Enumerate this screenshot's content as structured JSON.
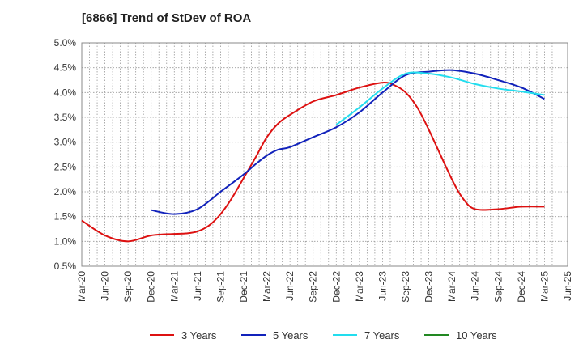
{
  "chart_data": {
    "type": "line",
    "title": "[6866]  Trend of StDev of ROA",
    "xlabel": "",
    "ylabel": "",
    "x_ticks": [
      "Mar-20",
      "Jun-20",
      "Sep-20",
      "Dec-20",
      "Mar-21",
      "Jun-21",
      "Sep-21",
      "Dec-21",
      "Mar-22",
      "Jun-22",
      "Sep-22",
      "Dec-22",
      "Mar-23",
      "Jun-23",
      "Sep-23",
      "Dec-23",
      "Mar-24",
      "Jun-24",
      "Sep-24",
      "Dec-24",
      "Mar-25",
      "Jun-25"
    ],
    "y_ticks": [
      "0.5%",
      "1.0%",
      "1.5%",
      "2.0%",
      "2.5%",
      "3.0%",
      "3.5%",
      "4.0%",
      "4.5%",
      "5.0%"
    ],
    "ylim": [
      0.5,
      5.0
    ],
    "grid": true,
    "legend_position": "bottom",
    "series": [
      {
        "name": "3 Years",
        "color": "#dd1111",
        "x": [
          0,
          1,
          2,
          3,
          4,
          4.5,
          5,
          5.5,
          6,
          6.5,
          7,
          7.5,
          8,
          8.5,
          9,
          10,
          11,
          12,
          13,
          13.5,
          14,
          14.5,
          15,
          16,
          16.5,
          17,
          18,
          19,
          20
        ],
        "y": [
          1.42,
          1.12,
          1.0,
          1.12,
          1.15,
          1.16,
          1.2,
          1.32,
          1.55,
          1.88,
          2.28,
          2.68,
          3.1,
          3.38,
          3.55,
          3.82,
          3.95,
          4.1,
          4.2,
          4.15,
          4.0,
          3.7,
          3.25,
          2.25,
          1.85,
          1.65,
          1.65,
          1.7,
          1.7
        ]
      },
      {
        "name": "5 Years",
        "color": "#1122bb",
        "x": [
          3,
          4,
          5,
          6,
          7,
          7.5,
          8,
          8.5,
          9,
          10,
          11,
          12,
          13,
          14,
          15,
          16,
          17,
          18,
          19,
          20
        ],
        "y": [
          1.63,
          1.55,
          1.65,
          2.0,
          2.35,
          2.55,
          2.73,
          2.85,
          2.9,
          3.1,
          3.3,
          3.6,
          4.0,
          4.35,
          4.42,
          4.45,
          4.38,
          4.25,
          4.1,
          3.87
        ]
      },
      {
        "name": "7 Years",
        "color": "#22ddee",
        "x": [
          11,
          12,
          13,
          14,
          15,
          16,
          17,
          18,
          19,
          20
        ],
        "y": [
          3.35,
          3.7,
          4.08,
          4.38,
          4.38,
          4.3,
          4.17,
          4.08,
          4.02,
          3.95
        ]
      },
      {
        "name": "10 Years",
        "color": "#228822",
        "x": [],
        "y": []
      }
    ]
  }
}
